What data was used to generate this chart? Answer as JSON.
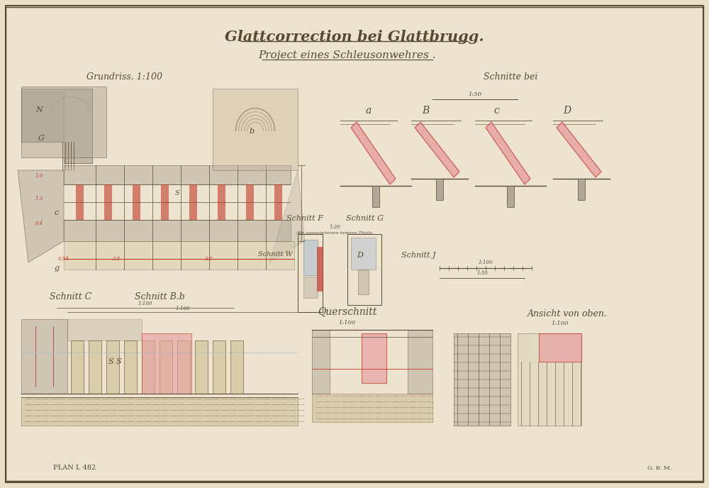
{
  "background_color": "#e8dfc8",
  "paper_color": "#ede3ce",
  "line_color": "#5a4a32",
  "red_color": "#c0392b",
  "pink_color": "#e8a0a0",
  "blue_color": "#a0b8d0",
  "gray_color": "#b0a898",
  "title1": "Glattcorrection bei Glattbrugg.",
  "title2": "Project eines Schleusonwehres .",
  "label_grundriss": "Grundriss. 1:100",
  "label_schnitte_bei": "Schnitte bei",
  "label_a": "a",
  "label_b": "B",
  "label_c": "c",
  "label_d": "D",
  "label_schnitt_f": "Schnitt F",
  "label_schnitt_g": "Schnitt G",
  "label_schnitt_w": "Schnitt W",
  "label_schnitt_j": "Schnitt J",
  "label_querschnitt": "Querschnitt",
  "label_schnitt_c": "Schnitt C",
  "label_schnitt_bb": "Schnitt B.b",
  "label_ansicht_oben": "Ansicht von oben.",
  "label_plan": "PLAN L 482",
  "title_fontsize": 15,
  "subtitle_fontsize": 11,
  "label_fontsize": 8
}
